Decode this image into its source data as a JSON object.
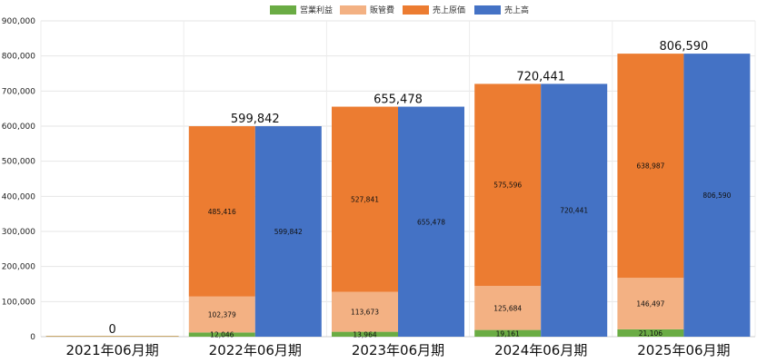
{
  "chart_data": {
    "type": "bar",
    "stacked": true,
    "categories": [
      "2021年06月期",
      "2022年06月期",
      "2023年06月期",
      "2024年06月期",
      "2025年06月期"
    ],
    "legend": [
      {
        "name": "営業利益",
        "color": "#6aac44"
      },
      {
        "name": "販管費",
        "color": "#f3b183"
      },
      {
        "name": "売上原価",
        "color": "#ec7c31"
      },
      {
        "name": "売上高",
        "color": "#4472c5"
      }
    ],
    "cost_stack": {
      "operating_profit": [
        0,
        12046,
        13964,
        19161,
        21106
      ],
      "sga": [
        0,
        102379,
        113673,
        125684,
        146497
      ],
      "cogs": [
        0,
        485416,
        527841,
        575596,
        638987
      ]
    },
    "cost_stack_labels": {
      "operating_profit": [
        "",
        "12,046",
        "13,964",
        "19,161",
        "21,106"
      ],
      "sga": [
        "",
        "102,379",
        "113,673",
        "125,684",
        "146,497"
      ],
      "cogs": [
        "",
        "485,416",
        "527,841",
        "575,596",
        "638,987"
      ]
    },
    "revenue": [
      0,
      599842,
      655478,
      720441,
      806590
    ],
    "revenue_labels": [
      "",
      "599,842",
      "655,478",
      "720,441",
      "806,590"
    ],
    "totals": [
      "0",
      "599,842",
      "655,478",
      "720,441",
      "806,590"
    ],
    "ylim": [
      0,
      900000
    ],
    "yticks": [
      0,
      100000,
      200000,
      300000,
      400000,
      500000,
      600000,
      700000,
      800000,
      900000
    ],
    "ytick_labels": [
      "0",
      "100,000",
      "200,000",
      "300,000",
      "400,000",
      "500,000",
      "600,000",
      "700,000",
      "800,000",
      "900,000"
    ],
    "legend_position": "top-center",
    "grid": true
  }
}
